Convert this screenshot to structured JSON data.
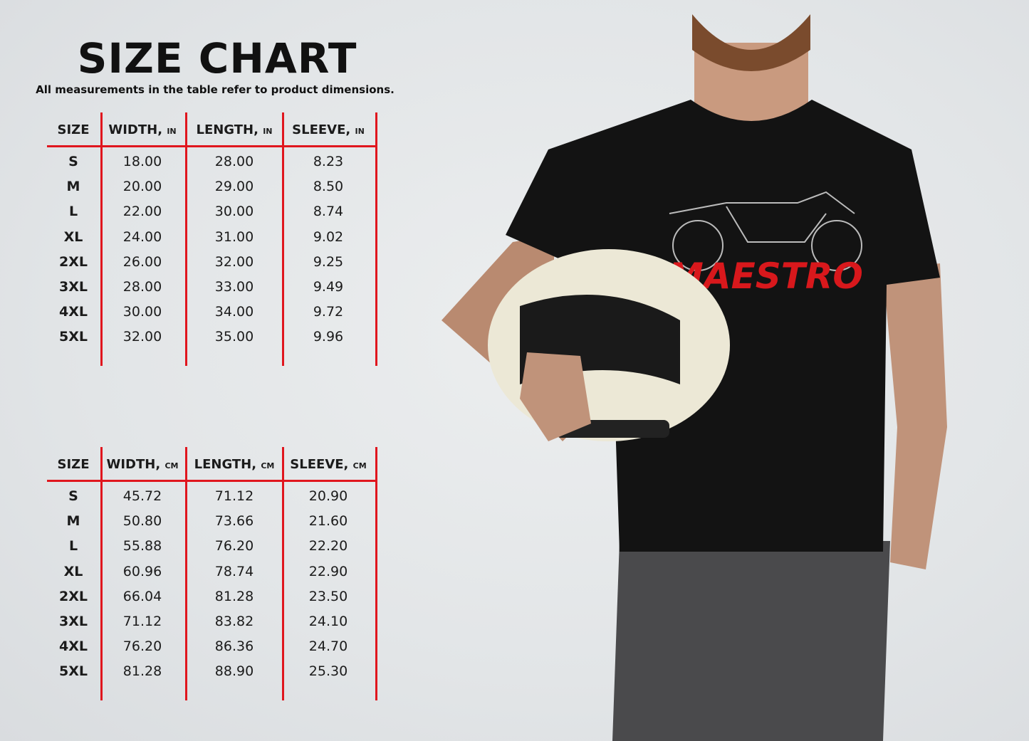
{
  "header": {
    "title": "SIZE CHART",
    "subtitle": "All measurements in the table refer to product dimensions."
  },
  "colors": {
    "accent": "#e0161e",
    "text": "#1b1b1b",
    "shirt": "#111111",
    "logo": "#d8181c"
  },
  "tables": [
    {
      "unit": "IN",
      "headers": [
        {
          "label": "SIZE",
          "unit": ""
        },
        {
          "label": "WIDTH,",
          "unit": "IN"
        },
        {
          "label": "LENGTH,",
          "unit": "IN"
        },
        {
          "label": "SLEEVE,",
          "unit": "IN"
        }
      ],
      "rows": [
        [
          "S",
          "18.00",
          "28.00",
          "8.23"
        ],
        [
          "M",
          "20.00",
          "29.00",
          "8.50"
        ],
        [
          "L",
          "22.00",
          "30.00",
          "8.74"
        ],
        [
          "XL",
          "24.00",
          "31.00",
          "9.02"
        ],
        [
          "2XL",
          "26.00",
          "32.00",
          "9.25"
        ],
        [
          "3XL",
          "28.00",
          "33.00",
          "9.49"
        ],
        [
          "4XL",
          "30.00",
          "34.00",
          "9.72"
        ],
        [
          "5XL",
          "32.00",
          "35.00",
          "9.96"
        ]
      ]
    },
    {
      "unit": "CM",
      "headers": [
        {
          "label": "SIZE",
          "unit": ""
        },
        {
          "label": "WIDTH,",
          "unit": "CM"
        },
        {
          "label": "LENGTH,",
          "unit": "CM"
        },
        {
          "label": "SLEEVE,",
          "unit": "CM"
        }
      ],
      "rows": [
        [
          "S",
          "45.72",
          "71.12",
          "20.90"
        ],
        [
          "M",
          "50.80",
          "73.66",
          "21.60"
        ],
        [
          "L",
          "55.88",
          "76.20",
          "22.20"
        ],
        [
          "XL",
          "60.96",
          "78.74",
          "22.90"
        ],
        [
          "2XL",
          "66.04",
          "81.28",
          "23.50"
        ],
        [
          "3XL",
          "71.12",
          "83.82",
          "24.10"
        ],
        [
          "4XL",
          "76.20",
          "86.36",
          "24.70"
        ],
        [
          "5XL",
          "81.28",
          "88.90",
          "25.30"
        ]
      ]
    }
  ],
  "photo": {
    "shirt_logo": "MAESTRO"
  }
}
